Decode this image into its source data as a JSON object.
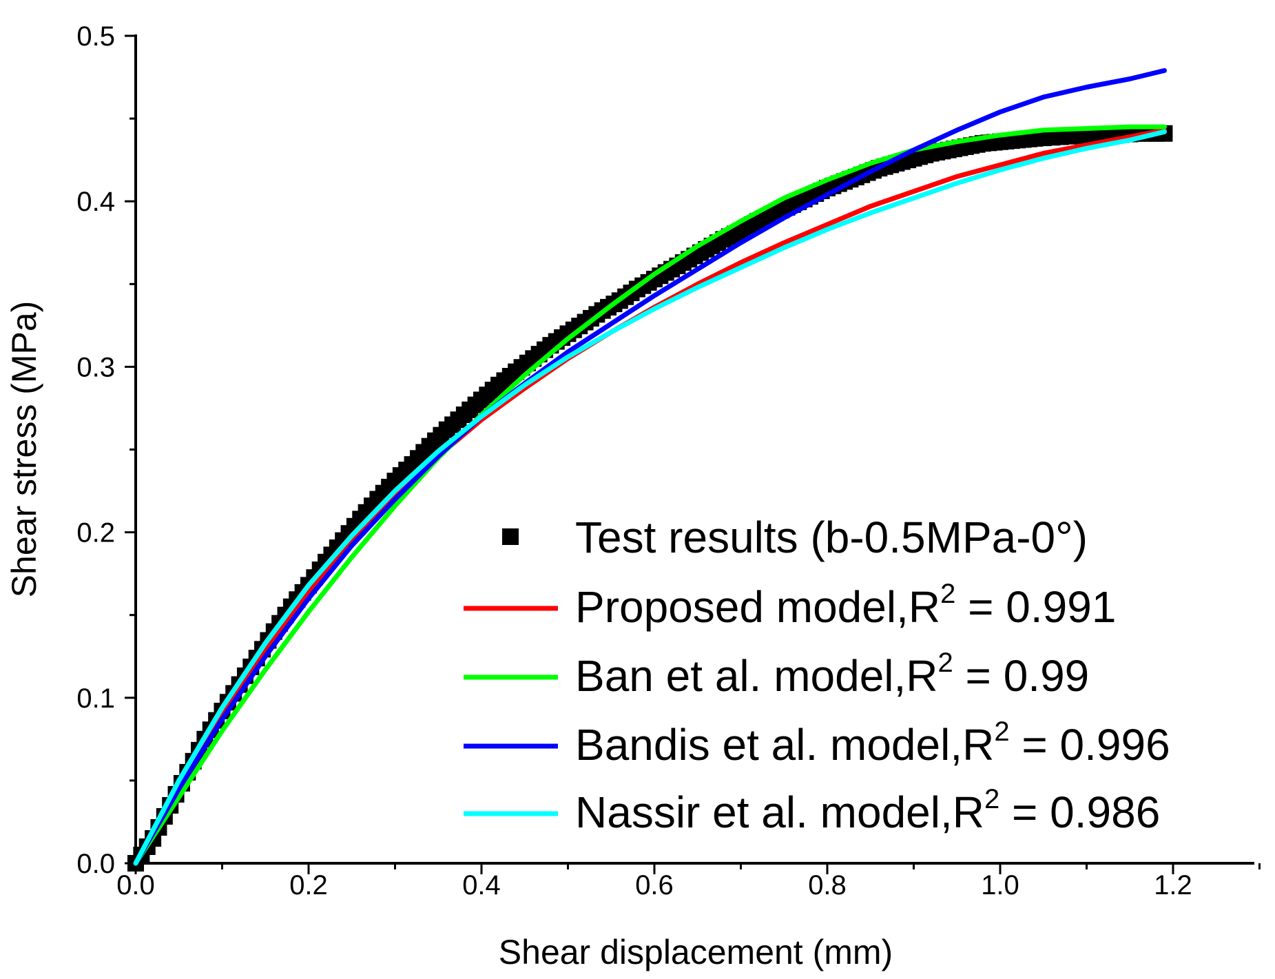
{
  "chart_data": {
    "type": "line",
    "title": "",
    "xlabel": "Shear displacement (mm)",
    "ylabel": "Shear stress (MPa)",
    "xlim": [
      0.0,
      1.3
    ],
    "ylim": [
      0.0,
      0.5
    ],
    "xticks": [
      "0.0",
      "0.2",
      "0.4",
      "0.6",
      "0.8",
      "1.0",
      "1.2"
    ],
    "yticks": [
      "0.0",
      "0.1",
      "0.2",
      "0.3",
      "0.4",
      "0.5"
    ],
    "legend_position": "bottom-right",
    "series": [
      {
        "name": "Test results (b-0.5MPa-0°)",
        "kind": "scatter",
        "marker": "square",
        "color": "#000000",
        "x": [
          0.0,
          0.02,
          0.04,
          0.06,
          0.08,
          0.1,
          0.12,
          0.14,
          0.16,
          0.18,
          0.2,
          0.22,
          0.24,
          0.26,
          0.28,
          0.3,
          0.32,
          0.34,
          0.36,
          0.38,
          0.4,
          0.42,
          0.44,
          0.46,
          0.48,
          0.5,
          0.52,
          0.54,
          0.56,
          0.58,
          0.6,
          0.62,
          0.64,
          0.66,
          0.68,
          0.7,
          0.72,
          0.74,
          0.76,
          0.78,
          0.8,
          0.82,
          0.84,
          0.86,
          0.88,
          0.9,
          0.92,
          0.94,
          0.96,
          0.98,
          1.0,
          1.02,
          1.04,
          1.07,
          1.1,
          1.13,
          1.16,
          1.19
        ],
        "y": [
          0.0,
          0.015,
          0.035,
          0.055,
          0.075,
          0.092,
          0.108,
          0.124,
          0.14,
          0.155,
          0.168,
          0.182,
          0.195,
          0.208,
          0.22,
          0.231,
          0.241,
          0.252,
          0.262,
          0.271,
          0.28,
          0.289,
          0.297,
          0.305,
          0.313,
          0.32,
          0.327,
          0.334,
          0.34,
          0.347,
          0.353,
          0.359,
          0.365,
          0.371,
          0.377,
          0.382,
          0.388,
          0.393,
          0.398,
          0.403,
          0.408,
          0.412,
          0.416,
          0.42,
          0.423,
          0.426,
          0.429,
          0.431,
          0.433,
          0.435,
          0.436,
          0.437,
          0.438,
          0.439,
          0.44,
          0.44,
          0.441,
          0.441
        ]
      },
      {
        "name": "Proposed model,R",
        "r2": "0.991",
        "kind": "line",
        "color": "#ff0000",
        "x": [
          0.0,
          0.05,
          0.1,
          0.15,
          0.2,
          0.25,
          0.3,
          0.35,
          0.4,
          0.45,
          0.5,
          0.55,
          0.6,
          0.65,
          0.7,
          0.75,
          0.8,
          0.85,
          0.9,
          0.95,
          1.0,
          1.05,
          1.1,
          1.15,
          1.19
        ],
        "y": [
          0.0,
          0.048,
          0.091,
          0.13,
          0.164,
          0.195,
          0.222,
          0.246,
          0.268,
          0.287,
          0.305,
          0.321,
          0.336,
          0.35,
          0.363,
          0.375,
          0.386,
          0.397,
          0.406,
          0.415,
          0.422,
          0.429,
          0.434,
          0.439,
          0.443
        ]
      },
      {
        "name": "Ban et al. model,R",
        "r2": "0.99",
        "kind": "line",
        "color": "#00ff00",
        "x": [
          0.0,
          0.05,
          0.1,
          0.15,
          0.2,
          0.25,
          0.3,
          0.35,
          0.4,
          0.45,
          0.5,
          0.55,
          0.6,
          0.65,
          0.7,
          0.75,
          0.8,
          0.85,
          0.9,
          0.95,
          1.0,
          1.05,
          1.1,
          1.15,
          1.19
        ],
        "y": [
          0.0,
          0.04,
          0.08,
          0.117,
          0.152,
          0.185,
          0.216,
          0.245,
          0.271,
          0.295,
          0.317,
          0.337,
          0.356,
          0.373,
          0.388,
          0.402,
          0.413,
          0.423,
          0.431,
          0.436,
          0.44,
          0.443,
          0.444,
          0.445,
          0.445
        ]
      },
      {
        "name": "Bandis et al. model,R",
        "r2": "0.996",
        "kind": "line",
        "color": "#0000ff",
        "x": [
          0.0,
          0.05,
          0.1,
          0.15,
          0.2,
          0.25,
          0.3,
          0.35,
          0.4,
          0.45,
          0.5,
          0.55,
          0.6,
          0.65,
          0.7,
          0.75,
          0.8,
          0.85,
          0.9,
          0.95,
          1.0,
          1.05,
          1.1,
          1.15,
          1.19
        ],
        "y": [
          0.0,
          0.045,
          0.087,
          0.125,
          0.16,
          0.192,
          0.22,
          0.246,
          0.27,
          0.29,
          0.309,
          0.326,
          0.343,
          0.359,
          0.375,
          0.39,
          0.404,
          0.418,
          0.431,
          0.443,
          0.454,
          0.463,
          0.469,
          0.474,
          0.479
        ]
      },
      {
        "name": "Nassir et al. model,R",
        "r2": "0.986",
        "kind": "line",
        "color": "#00ffff",
        "x": [
          0.0,
          0.05,
          0.1,
          0.15,
          0.2,
          0.25,
          0.3,
          0.35,
          0.4,
          0.45,
          0.5,
          0.55,
          0.6,
          0.65,
          0.7,
          0.75,
          0.8,
          0.85,
          0.9,
          0.95,
          1.0,
          1.05,
          1.1,
          1.15,
          1.19
        ],
        "y": [
          0.0,
          0.05,
          0.094,
          0.133,
          0.168,
          0.198,
          0.225,
          0.249,
          0.27,
          0.289,
          0.306,
          0.321,
          0.335,
          0.348,
          0.36,
          0.372,
          0.383,
          0.393,
          0.402,
          0.411,
          0.419,
          0.426,
          0.432,
          0.437,
          0.442
        ]
      }
    ]
  }
}
